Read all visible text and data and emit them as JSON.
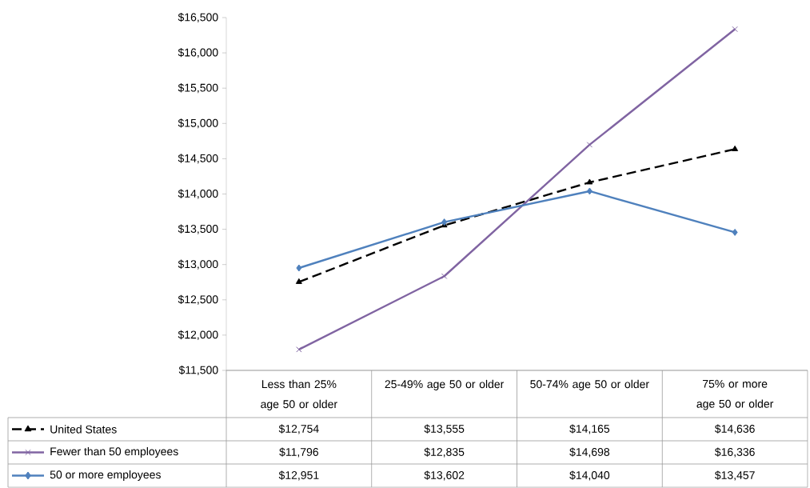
{
  "chart_data": {
    "type": "line",
    "categories": [
      "Less than 25% age 50 or older",
      "25-49% age 50 or older",
      "50-74% age 50 or older",
      "75% or more age 50 or older"
    ],
    "series": [
      {
        "name": "United States",
        "color": "#000000",
        "marker": "triangle",
        "line_style": "dashed",
        "values": [
          12754,
          13555,
          14165,
          14636
        ],
        "value_labels": [
          "$12,754",
          "$13,555",
          "$14,165",
          "$14,636"
        ]
      },
      {
        "name": "Fewer than 50 employees",
        "color": "#8064a2",
        "marker": "cross",
        "line_style": "solid",
        "values": [
          11796,
          12835,
          14698,
          16336
        ],
        "value_labels": [
          "$11,796",
          "$12,835",
          "$14,698",
          "$16,336"
        ]
      },
      {
        "name": "50 or more employees",
        "color": "#4f81bd",
        "marker": "diamond",
        "line_style": "solid",
        "values": [
          12951,
          13602,
          14040,
          13457
        ],
        "value_labels": [
          "$12,951",
          "$13,602",
          "$14,040",
          "$13,457"
        ]
      }
    ],
    "ylim": [
      11500,
      16500
    ],
    "yticks": [
      {
        "value": 11500,
        "label": "$11,500"
      },
      {
        "value": 12000,
        "label": "$12,000"
      },
      {
        "value": 12500,
        "label": "$12,500"
      },
      {
        "value": 13000,
        "label": "$13,000"
      },
      {
        "value": 13500,
        "label": "$13,500"
      },
      {
        "value": 14000,
        "label": "$14,000"
      },
      {
        "value": 14500,
        "label": "$14,500"
      },
      {
        "value": 15000,
        "label": "$15,000"
      },
      {
        "value": 15500,
        "label": "$15,500"
      },
      {
        "value": 16000,
        "label": "$16,000"
      },
      {
        "value": 16500,
        "label": "$16,500"
      }
    ],
    "grid": false,
    "legend": "bottom"
  }
}
